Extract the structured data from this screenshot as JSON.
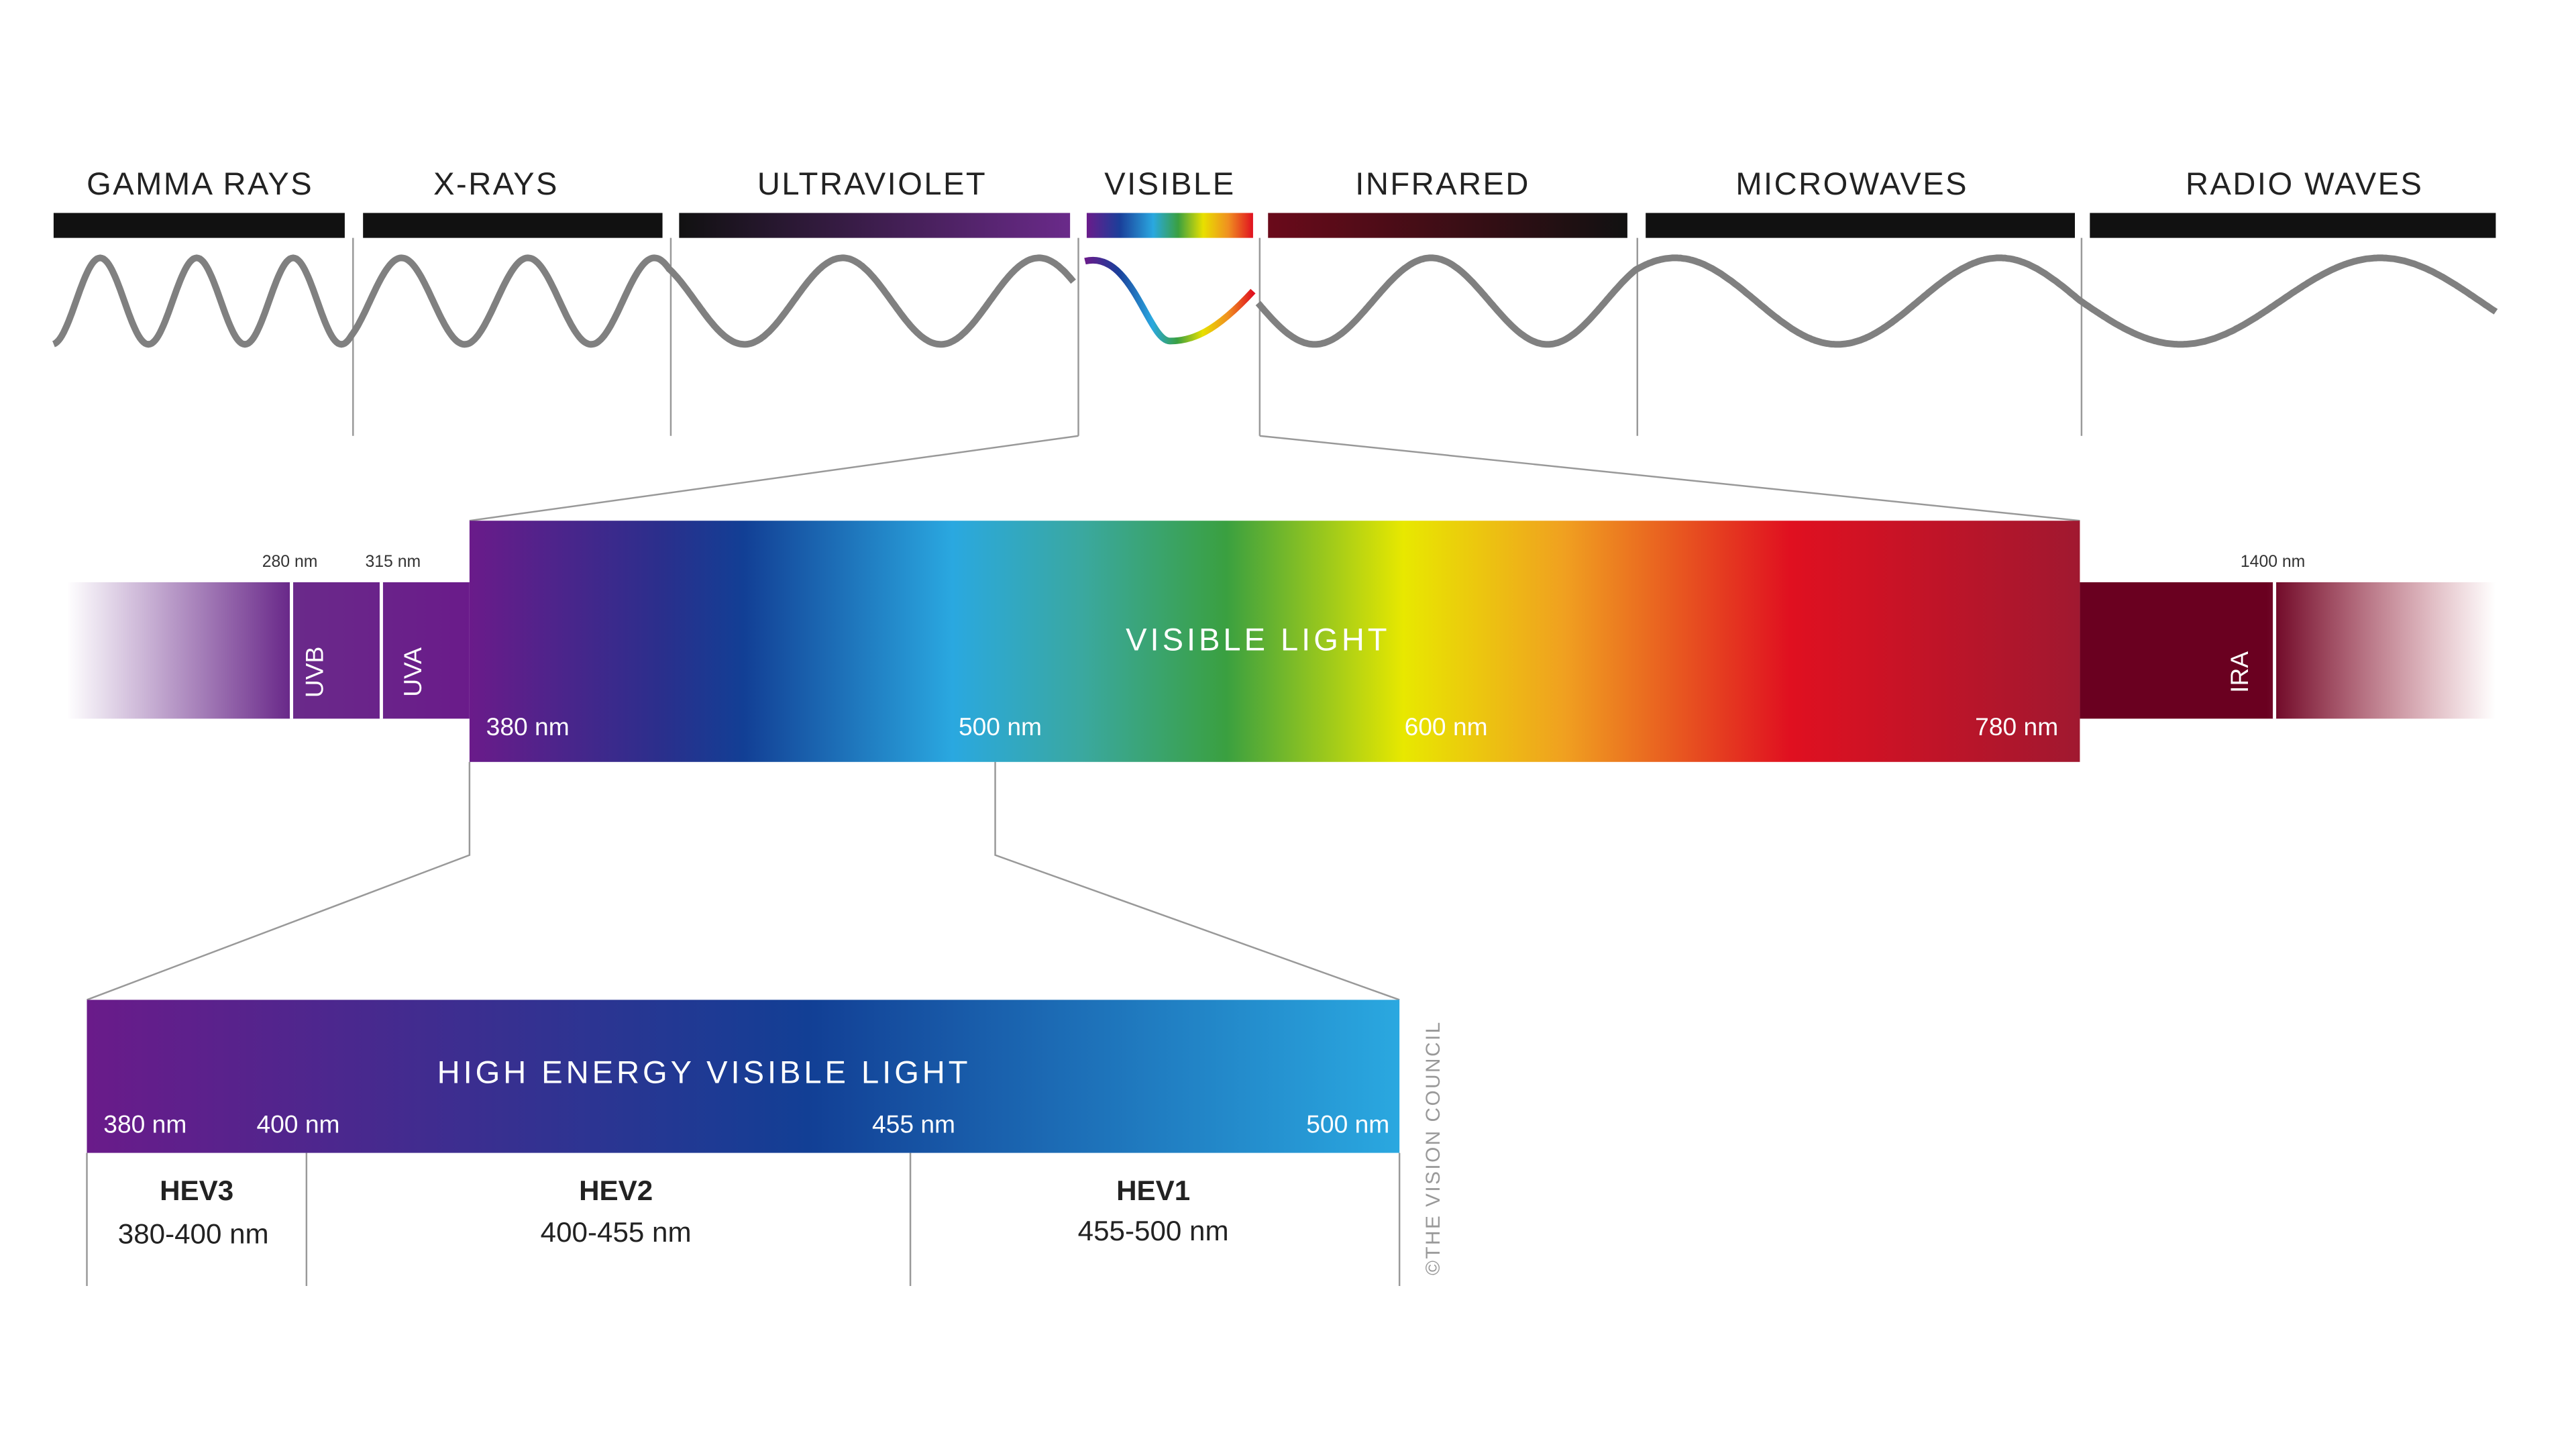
{
  "spectrum": {
    "bands": [
      "GAMMA RAYS",
      "X-RAYS",
      "ULTRAVIOLET",
      "VISIBLE",
      "INFRARED",
      "MICROWAVES",
      "RADIO WAVES"
    ]
  },
  "uv_ir": {
    "marks": [
      "280 nm",
      "315 nm",
      "1400 nm"
    ],
    "regions": [
      "UVB",
      "UVA",
      "IRA"
    ]
  },
  "visible": {
    "title": "VISIBLE LIGHT",
    "ticks": [
      "380 nm",
      "500 nm",
      "600 nm",
      "780 nm"
    ]
  },
  "hev": {
    "title": "HIGH ENERGY VISIBLE LIGHT",
    "ticks": [
      "380 nm",
      "400 nm",
      "455 nm",
      "500 nm"
    ],
    "groups": [
      {
        "name": "HEV3",
        "range": "380-400 nm"
      },
      {
        "name": "HEV2",
        "range": "400-455 nm"
      },
      {
        "name": "HEV1",
        "range": "455-500 nm"
      }
    ]
  },
  "credit": "©THE VISION COUNCIL"
}
